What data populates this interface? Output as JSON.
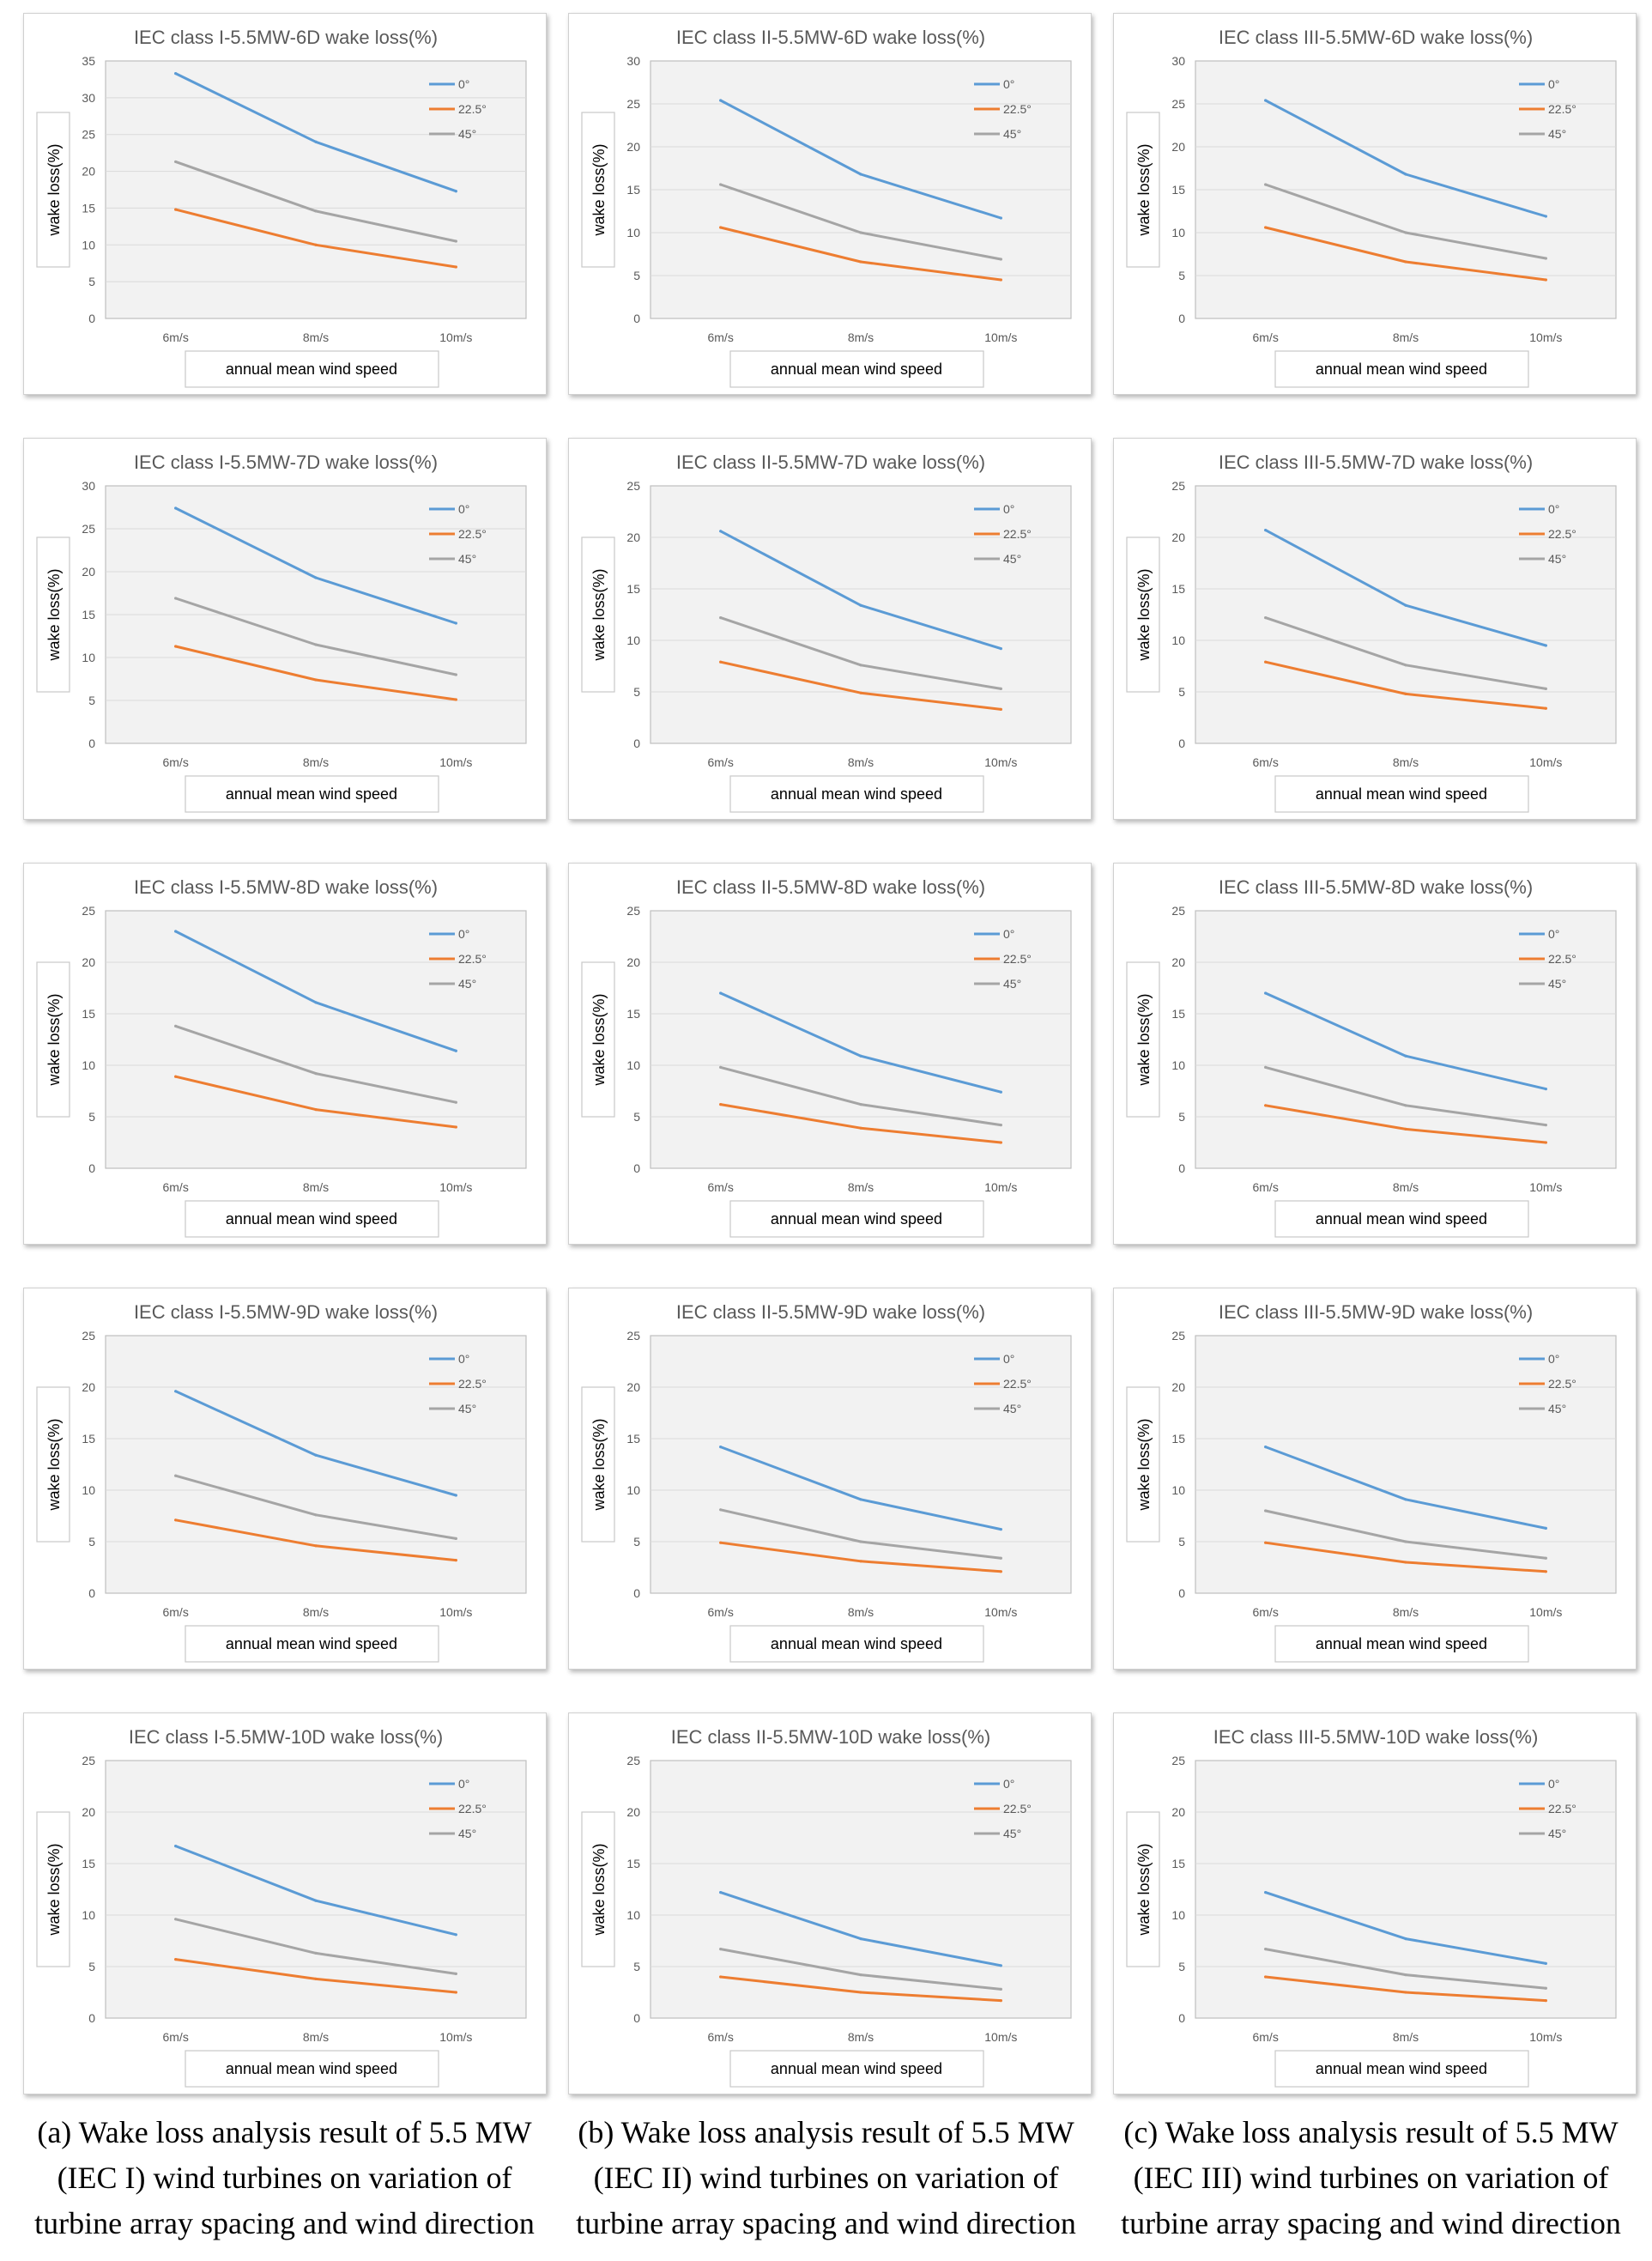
{
  "figure": {
    "colors": {
      "series_0": "#5B9BD5",
      "series_22_5": "#ED7D31",
      "series_45": "#A5A5A5",
      "plot_bg": "#F2F2F2",
      "grid": "#D9D9D9",
      "text": "#595959"
    },
    "captions": [
      "(a) Wake loss analysis result of 5.5 MW (IEC I) wind turbines on variation of turbine array spacing and wind direction",
      "(b) Wake loss analysis result of 5.5 MW (IEC II) wind turbines on variation of turbine array spacing  and wind direction",
      "(c) Wake loss analysis result of 5.5 MW (IEC III) wind turbines on variation of turbine array spacing  and wind direction"
    ]
  },
  "chart_data": [
    {
      "type": "line",
      "title": "IEC class I-5.5MW-6D wake loss(%)",
      "ylabel": "wake loss(%)",
      "xlabel": "annual mean wind speed",
      "categories": [
        "6m/s",
        "8m/s",
        "10m/s"
      ],
      "ylim": [
        0,
        35
      ],
      "ytick_step": 5,
      "series": [
        {
          "name": "0°",
          "values": [
            33.3,
            24.0,
            17.3
          ]
        },
        {
          "name": "22.5°",
          "values": [
            14.8,
            10.0,
            7.0
          ]
        },
        {
          "name": "45°",
          "values": [
            21.3,
            14.6,
            10.5
          ]
        }
      ]
    },
    {
      "type": "line",
      "title": "IEC class II-5.5MW-6D wake loss(%)",
      "ylabel": "wake loss(%)",
      "xlabel": "annual mean wind speed",
      "categories": [
        "6m/s",
        "8m/s",
        "10m/s"
      ],
      "ylim": [
        0,
        30
      ],
      "ytick_step": 5,
      "series": [
        {
          "name": "0°",
          "values": [
            25.4,
            16.8,
            11.7
          ]
        },
        {
          "name": "22.5°",
          "values": [
            10.6,
            6.6,
            4.5
          ]
        },
        {
          "name": "45°",
          "values": [
            15.6,
            10.0,
            6.9
          ]
        }
      ]
    },
    {
      "type": "line",
      "title": "IEC class III-5.5MW-6D wake loss(%)",
      "ylabel": "wake loss(%)",
      "xlabel": "annual mean wind speed",
      "categories": [
        "6m/s",
        "8m/s",
        "10m/s"
      ],
      "ylim": [
        0,
        30
      ],
      "ytick_step": 5,
      "series": [
        {
          "name": "0°",
          "values": [
            25.4,
            16.8,
            11.9
          ]
        },
        {
          "name": "22.5°",
          "values": [
            10.6,
            6.6,
            4.5
          ]
        },
        {
          "name": "45°",
          "values": [
            15.6,
            10.0,
            7.0
          ]
        }
      ]
    },
    {
      "type": "line",
      "title": "IEC class I-5.5MW-7D wake loss(%)",
      "ylabel": "wake loss(%)",
      "xlabel": "annual mean wind speed",
      "categories": [
        "6m/s",
        "8m/s",
        "10m/s"
      ],
      "ylim": [
        0,
        30
      ],
      "ytick_step": 5,
      "series": [
        {
          "name": "0°",
          "values": [
            27.4,
            19.3,
            14.0
          ]
        },
        {
          "name": "22.5°",
          "values": [
            11.3,
            7.4,
            5.1
          ]
        },
        {
          "name": "45°",
          "values": [
            16.9,
            11.5,
            8.0
          ]
        }
      ]
    },
    {
      "type": "line",
      "title": "IEC class II-5.5MW-7D wake loss(%)",
      "ylabel": "wake loss(%)",
      "xlabel": "annual mean wind speed",
      "categories": [
        "6m/s",
        "8m/s",
        "10m/s"
      ],
      "ylim": [
        0,
        25
      ],
      "ytick_step": 5,
      "series": [
        {
          "name": "0°",
          "values": [
            20.6,
            13.4,
            9.2
          ]
        },
        {
          "name": "22.5°",
          "values": [
            7.9,
            4.9,
            3.3
          ]
        },
        {
          "name": "45°",
          "values": [
            12.2,
            7.6,
            5.3
          ]
        }
      ]
    },
    {
      "type": "line",
      "title": "IEC class III-5.5MW-7D wake loss(%)",
      "ylabel": "wake loss(%)",
      "xlabel": "annual mean wind speed",
      "categories": [
        "6m/s",
        "8m/s",
        "10m/s"
      ],
      "ylim": [
        0,
        25
      ],
      "ytick_step": 5,
      "series": [
        {
          "name": "0°",
          "values": [
            20.7,
            13.4,
            9.5
          ]
        },
        {
          "name": "22.5°",
          "values": [
            7.9,
            4.8,
            3.4
          ]
        },
        {
          "name": "45°",
          "values": [
            12.2,
            7.6,
            5.3
          ]
        }
      ]
    },
    {
      "type": "line",
      "title": "IEC class I-5.5MW-8D wake loss(%)",
      "ylabel": "wake loss(%)",
      "xlabel": "annual mean wind speed",
      "categories": [
        "6m/s",
        "8m/s",
        "10m/s"
      ],
      "ylim": [
        0,
        25
      ],
      "ytick_step": 5,
      "series": [
        {
          "name": "0°",
          "values": [
            23.0,
            16.1,
            11.4
          ]
        },
        {
          "name": "22.5°",
          "values": [
            8.9,
            5.7,
            4.0
          ]
        },
        {
          "name": "45°",
          "values": [
            13.8,
            9.2,
            6.4
          ]
        }
      ]
    },
    {
      "type": "line",
      "title": "IEC class II-5.5MW-8D wake loss(%)",
      "ylabel": "wake loss(%)",
      "xlabel": "annual mean wind speed",
      "categories": [
        "6m/s",
        "8m/s",
        "10m/s"
      ],
      "ylim": [
        0,
        25
      ],
      "ytick_step": 5,
      "series": [
        {
          "name": "0°",
          "values": [
            17.0,
            10.9,
            7.4
          ]
        },
        {
          "name": "22.5°",
          "values": [
            6.2,
            3.9,
            2.5
          ]
        },
        {
          "name": "45°",
          "values": [
            9.8,
            6.2,
            4.2
          ]
        }
      ]
    },
    {
      "type": "line",
      "title": "IEC class III-5.5MW-8D wake loss(%)",
      "ylabel": "wake loss(%)",
      "xlabel": "annual mean wind speed",
      "categories": [
        "6m/s",
        "8m/s",
        "10m/s"
      ],
      "ylim": [
        0,
        25
      ],
      "ytick_step": 5,
      "series": [
        {
          "name": "0°",
          "values": [
            17.0,
            10.9,
            7.7
          ]
        },
        {
          "name": "22.5°",
          "values": [
            6.1,
            3.8,
            2.5
          ]
        },
        {
          "name": "45°",
          "values": [
            9.8,
            6.1,
            4.2
          ]
        }
      ]
    },
    {
      "type": "line",
      "title": "IEC class I-5.5MW-9D wake loss(%)",
      "ylabel": "wake loss(%)",
      "xlabel": "annual mean wind speed",
      "categories": [
        "6m/s",
        "8m/s",
        "10m/s"
      ],
      "ylim": [
        0,
        25
      ],
      "ytick_step": 5,
      "series": [
        {
          "name": "0°",
          "values": [
            19.6,
            13.4,
            9.5
          ]
        },
        {
          "name": "22.5°",
          "values": [
            7.1,
            4.6,
            3.2
          ]
        },
        {
          "name": "45°",
          "values": [
            11.4,
            7.6,
            5.3
          ]
        }
      ]
    },
    {
      "type": "line",
      "title": "IEC class II-5.5MW-9D wake loss(%)",
      "ylabel": "wake loss(%)",
      "xlabel": "annual mean wind speed",
      "categories": [
        "6m/s",
        "8m/s",
        "10m/s"
      ],
      "ylim": [
        0,
        25
      ],
      "ytick_step": 5,
      "series": [
        {
          "name": "0°",
          "values": [
            14.2,
            9.1,
            6.2
          ]
        },
        {
          "name": "22.5°",
          "values": [
            4.9,
            3.1,
            2.1
          ]
        },
        {
          "name": "45°",
          "values": [
            8.1,
            5.0,
            3.4
          ]
        }
      ]
    },
    {
      "type": "line",
      "title": "IEC class III-5.5MW-9D wake loss(%)",
      "ylabel": "wake loss(%)",
      "xlabel": "annual mean wind speed",
      "categories": [
        "6m/s",
        "8m/s",
        "10m/s"
      ],
      "ylim": [
        0,
        25
      ],
      "ytick_step": 5,
      "series": [
        {
          "name": "0°",
          "values": [
            14.2,
            9.1,
            6.3
          ]
        },
        {
          "name": "22.5°",
          "values": [
            4.9,
            3.0,
            2.1
          ]
        },
        {
          "name": "45°",
          "values": [
            8.0,
            5.0,
            3.4
          ]
        }
      ]
    },
    {
      "type": "line",
      "title": "IEC class I-5.5MW-10D wake loss(%)",
      "ylabel": "wake loss(%)",
      "xlabel": "annual mean wind speed",
      "categories": [
        "6m/s",
        "8m/s",
        "10m/s"
      ],
      "ylim": [
        0,
        25
      ],
      "ytick_step": 5,
      "series": [
        {
          "name": "0°",
          "values": [
            16.7,
            11.4,
            8.1
          ]
        },
        {
          "name": "22.5°",
          "values": [
            5.7,
            3.8,
            2.5
          ]
        },
        {
          "name": "45°",
          "values": [
            9.6,
            6.3,
            4.3
          ]
        }
      ]
    },
    {
      "type": "line",
      "title": "IEC class II-5.5MW-10D wake loss(%)",
      "ylabel": "wake loss(%)",
      "xlabel": "annual mean wind speed",
      "categories": [
        "6m/s",
        "8m/s",
        "10m/s"
      ],
      "ylim": [
        0,
        25
      ],
      "ytick_step": 5,
      "series": [
        {
          "name": "0°",
          "values": [
            12.2,
            7.7,
            5.1
          ]
        },
        {
          "name": "22.5°",
          "values": [
            4.0,
            2.5,
            1.7
          ]
        },
        {
          "name": "45°",
          "values": [
            6.7,
            4.2,
            2.8
          ]
        }
      ]
    },
    {
      "type": "line",
      "title": "IEC class III-5.5MW-10D wake loss(%)",
      "ylabel": "wake loss(%)",
      "xlabel": "annual mean wind speed",
      "categories": [
        "6m/s",
        "8m/s",
        "10m/s"
      ],
      "ylim": [
        0,
        25
      ],
      "ytick_step": 5,
      "series": [
        {
          "name": "0°",
          "values": [
            12.2,
            7.7,
            5.3
          ]
        },
        {
          "name": "22.5°",
          "values": [
            4.0,
            2.5,
            1.7
          ]
        },
        {
          "name": "45°",
          "values": [
            6.7,
            4.2,
            2.9
          ]
        }
      ]
    }
  ]
}
